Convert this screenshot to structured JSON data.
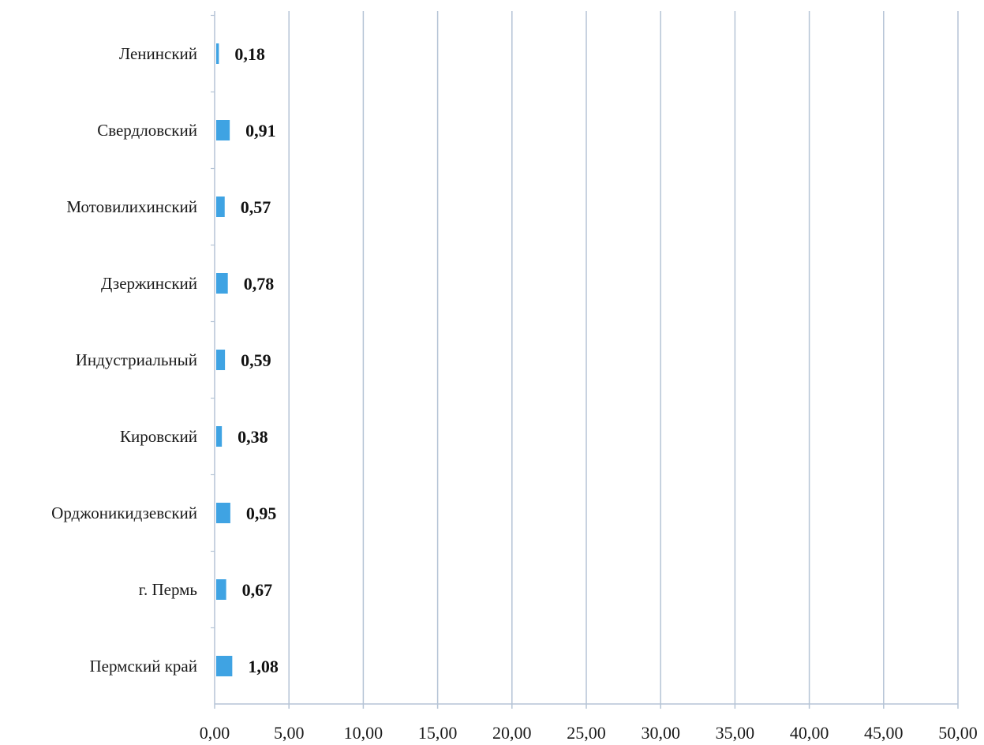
{
  "chart_data": {
    "type": "bar",
    "orientation": "horizontal",
    "categories": [
      "Ленинский",
      "Свердловский",
      "Мотовилихинский",
      "Дзержинский",
      "Индустриальный",
      "Кировский",
      "Орджоникидзевский",
      "г. Пермь",
      "Пермский край"
    ],
    "values": [
      0.18,
      0.91,
      0.57,
      0.78,
      0.59,
      0.38,
      0.95,
      0.67,
      1.08
    ],
    "value_labels": [
      "0,18",
      "0,91",
      "0,57",
      "0,78",
      "0,59",
      "0,38",
      "0,95",
      "0,67",
      "1,08"
    ],
    "xlim": [
      0,
      50
    ],
    "x_ticks": [
      0,
      5,
      10,
      15,
      20,
      25,
      30,
      35,
      40,
      45,
      50
    ],
    "x_tick_labels": [
      "0,00",
      "5,00",
      "10,00",
      "15,00",
      "20,00",
      "25,00",
      "30,00",
      "35,00",
      "40,00",
      "45,00",
      "50,00"
    ],
    "grid": "vertical",
    "legend": "none",
    "title": "",
    "xlabel": "",
    "ylabel": "",
    "colors": {
      "bar": "#3fa3e3",
      "grid": "#b5c4d6",
      "axis": "#b5c4d6"
    }
  }
}
